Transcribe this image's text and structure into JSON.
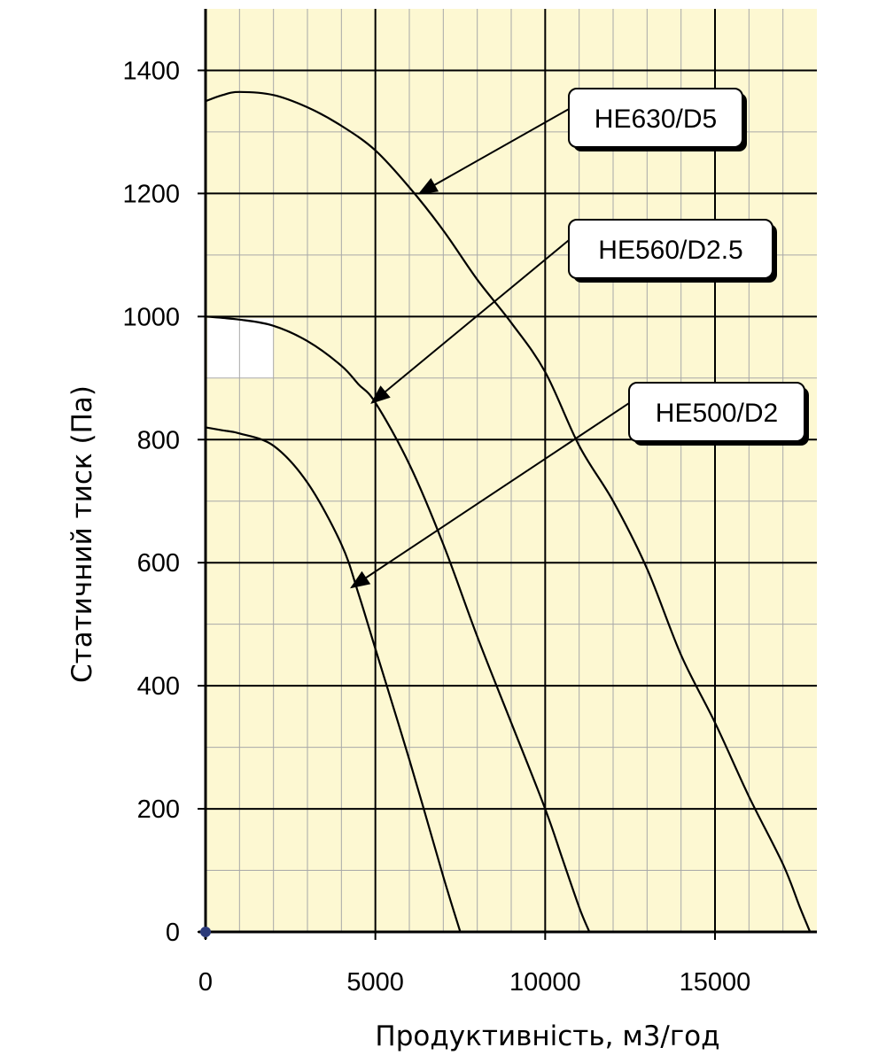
{
  "chart_data": {
    "type": "line",
    "xlabel": "Продуктивність, м3/год",
    "ylabel": "Статичний тиск (Па)",
    "xlim": [
      0,
      18000
    ],
    "ylim": [
      0,
      1500
    ],
    "x_ticks": [
      "0",
      "5000",
      "10000",
      "15000"
    ],
    "y_ticks": [
      "0",
      "200",
      "400",
      "600",
      "800",
      "1000",
      "1200",
      "1400"
    ],
    "grid": true,
    "background_color": "#fdf8d2",
    "line_color": "#000000",
    "origin_marker_color": "#2b3a7a",
    "series": [
      {
        "name": "HE630/D5",
        "x": [
          0,
          500,
          1000,
          2000,
          3000,
          4000,
          5000,
          6000,
          7000,
          8000,
          9000,
          10000,
          11000,
          12000,
          13000,
          14000,
          15000,
          16000,
          17000,
          17500,
          17800
        ],
        "y": [
          1350,
          1360,
          1365,
          1360,
          1340,
          1310,
          1270,
          1210,
          1140,
          1060,
          990,
          910,
          790,
          700,
          590,
          450,
          340,
          220,
          110,
          40,
          0
        ]
      },
      {
        "name": "HE560/D2.5",
        "x": [
          0,
          1000,
          2000,
          3000,
          4000,
          4500,
          5000,
          6000,
          7000,
          8000,
          9000,
          10000,
          10500,
          11000,
          11300
        ],
        "y": [
          1000,
          995,
          985,
          960,
          920,
          890,
          860,
          760,
          630,
          480,
          340,
          200,
          120,
          40,
          0
        ]
      },
      {
        "name": "HE500/D2",
        "x": [
          0,
          500,
          1000,
          2000,
          3000,
          4000,
          4500,
          5000,
          6000,
          7000,
          7500
        ],
        "y": [
          820,
          815,
          810,
          790,
          730,
          630,
          550,
          460,
          280,
          90,
          0
        ]
      }
    ],
    "annotations": [
      {
        "text": "HE630/D5"
      },
      {
        "text": "HE560/D2.5"
      },
      {
        "text": "HE500/D2"
      }
    ]
  }
}
